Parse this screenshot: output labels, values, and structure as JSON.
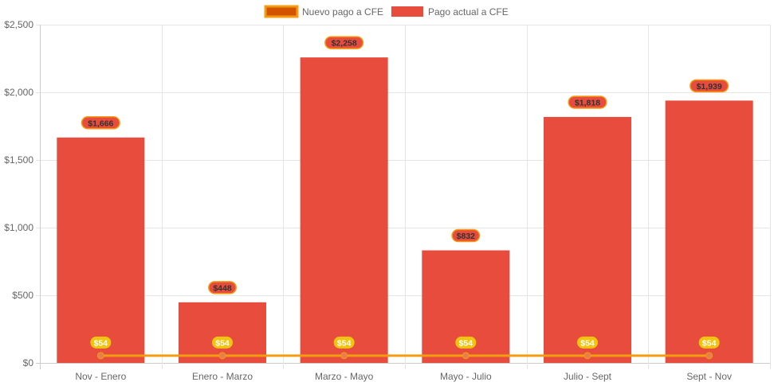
{
  "chart_data": {
    "type": "bar",
    "categories": [
      "Nov - Enero",
      "Enero - Marzo",
      "Marzo - Mayo",
      "Mayo - Julio",
      "Julio - Sept",
      "Sept - Nov"
    ],
    "series": [
      {
        "name": "Nuevo pago a CFE",
        "type": "line",
        "values": [
          54,
          54,
          54,
          54,
          54,
          54
        ],
        "labels": [
          "$54",
          "$54",
          "$54",
          "$54",
          "$54",
          "$54"
        ],
        "color": "#f39c12",
        "fill": "#d35400",
        "point_color": "#e67e50"
      },
      {
        "name": "Pago actual a CFE",
        "type": "bar",
        "values": [
          1666,
          448,
          2258,
          832,
          1818,
          1939
        ],
        "labels": [
          "$1,666",
          "$448",
          "$2,258",
          "$832",
          "$1,818",
          "$1,939"
        ],
        "color": "#e74c3c"
      }
    ],
    "ylim": [
      0,
      2500
    ],
    "yticks": [
      0,
      500,
      1000,
      1500,
      2000,
      2500
    ],
    "ytick_labels": [
      "$0",
      "$500",
      "$1,000",
      "$1,500",
      "$2,000",
      "$2,500"
    ],
    "grid": true,
    "legend": "top",
    "label_colors": {
      "bar_label_text": "#333333",
      "bar_label_border": "#f39c12",
      "line_label_bg": "#f1c40f",
      "line_label_text": "#ffffff"
    }
  }
}
